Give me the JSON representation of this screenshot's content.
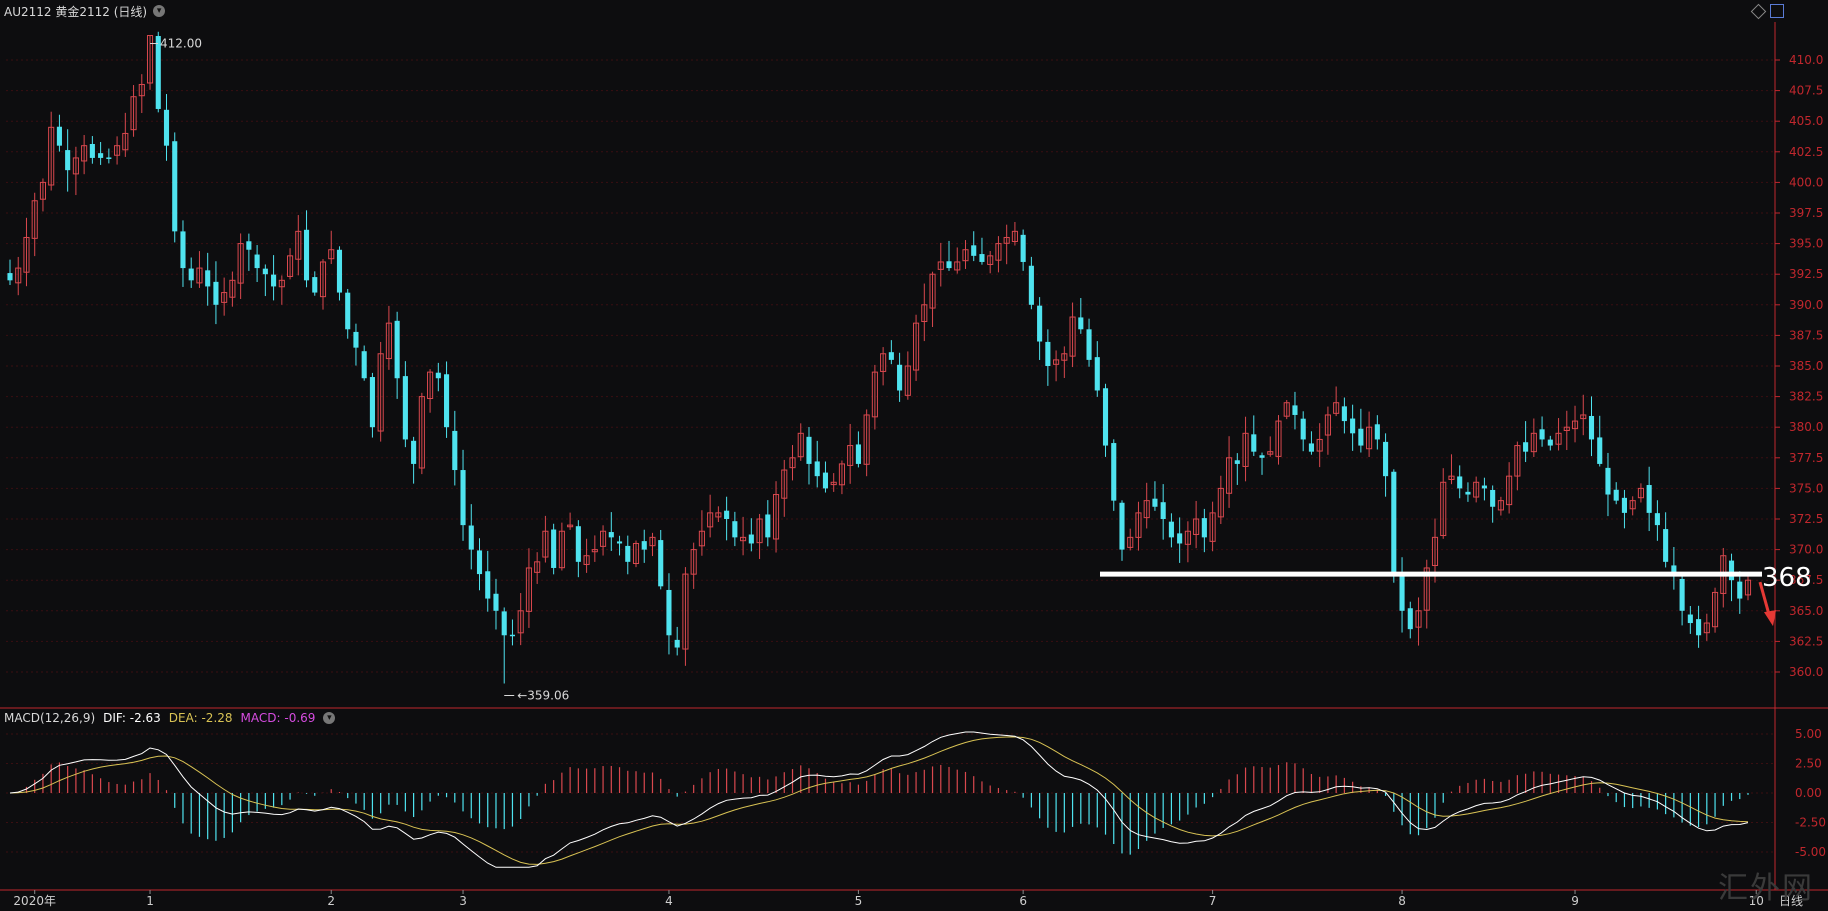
{
  "header": {
    "symbol_title": "AU2112 黄金2112 (日线)"
  },
  "macd_legend": {
    "label": "MACD(12,26,9)",
    "dif": "DIF: -2.63",
    "dea": "DEA: -2.28",
    "macd": "MACD: -0.69"
  },
  "annotations": {
    "high_label": "412.00",
    "low_label": "359.06",
    "level_label": "368",
    "period_label": "日线"
  },
  "watermark": "汇外网",
  "colors": {
    "background": "#0d0d0f",
    "up": "#d9484e",
    "down": "#4fe3ef",
    "axis_red": "#c0272d",
    "dif_line": "#ffffff",
    "dea_line": "#d8c254",
    "level_line": "#ffffff",
    "arrow": "#e53935"
  },
  "chart_data": [
    {
      "type": "candlestick",
      "title": "AU2112 黄金2112 (日线)",
      "ylim": [
        358,
        413
      ],
      "yticks": [
        360.0,
        362.5,
        365.0,
        367.5,
        370.0,
        372.5,
        375.0,
        377.5,
        380.0,
        382.5,
        385.0,
        387.5,
        390.0,
        392.5,
        395.0,
        397.5,
        400.0,
        402.5,
        405.0,
        407.5,
        410.0
      ],
      "xlabels": [
        {
          "i": 3,
          "label": "2020年"
        },
        {
          "i": 17,
          "label": "1"
        },
        {
          "i": 39,
          "label": "2"
        },
        {
          "i": 55,
          "label": "3"
        },
        {
          "i": 80,
          "label": "4"
        },
        {
          "i": 103,
          "label": "5"
        },
        {
          "i": 123,
          "label": "6"
        },
        {
          "i": 146,
          "label": "7"
        },
        {
          "i": 169,
          "label": "8"
        },
        {
          "i": 190,
          "label": "9"
        },
        {
          "i": 212,
          "label": "10"
        }
      ],
      "close": [
        392.0,
        393.0,
        395.5,
        398.5,
        400.0,
        404.5,
        403.0,
        401.0,
        402.0,
        403.0,
        402.0,
        402.0,
        402.0,
        403.0,
        404.0,
        407.0,
        408.0,
        412.0,
        406.0,
        403.0,
        396.0,
        393.0,
        392.0,
        393.0,
        391.5,
        390.0,
        391.0,
        392.0,
        395.0,
        394.5,
        393.0,
        392.5,
        391.5,
        392.0,
        394.0,
        396.0,
        392.0,
        391.0,
        393.5,
        394.5,
        391.0,
        388.0,
        386.5,
        384.0,
        380.0,
        386.0,
        388.5,
        384.0,
        379.0,
        377.0,
        382.5,
        384.5,
        384.0,
        380.0,
        376.5,
        372.0,
        370.0,
        368.0,
        366.0,
        365.0,
        363.0,
        363.0,
        365.0,
        368.5,
        369.0,
        371.5,
        368.5,
        371.5,
        372.0,
        369.0,
        369.5,
        370.0,
        371.5,
        371.0,
        370.5,
        369.0,
        370.5,
        370.0,
        371.0,
        367.0,
        363.0,
        362.0,
        368.0,
        370.0,
        371.5,
        373.0,
        373.0,
        372.5,
        371.0,
        371.0,
        370.5,
        372.5,
        371.0,
        374.5,
        376.5,
        377.5,
        379.5,
        377.0,
        376.0,
        375.0,
        375.5,
        377.0,
        378.5,
        377.0,
        381.0,
        384.5,
        386.0,
        385.5,
        383.0,
        385.0,
        388.5,
        390.0,
        392.5,
        393.5,
        393.0,
        393.5,
        394.5,
        394.0,
        393.5,
        394.0,
        395.0,
        395.5,
        396.0,
        393.5,
        390.0,
        387.0,
        385.0,
        385.5,
        386.0,
        389.0,
        388.0,
        385.5,
        383.0,
        378.5,
        374.0,
        370.0,
        371.0,
        373.0,
        374.0,
        373.5,
        372.5,
        371.0,
        370.5,
        371.5,
        372.5,
        371.0,
        373.0,
        375.0,
        377.5,
        377.0,
        379.5,
        378.0,
        377.5,
        378.0,
        380.5,
        382.0,
        381.0,
        379.0,
        378.0,
        379.0,
        381.0,
        382.0,
        380.5,
        379.5,
        378.5,
        380.0,
        379.0,
        376.0,
        368.0,
        365.0,
        363.5,
        365.0,
        368.5,
        371.0,
        375.5,
        376.0,
        375.0,
        374.5,
        375.5,
        375.0,
        373.5,
        374.0,
        376.0,
        378.5,
        378.0,
        379.5,
        379.0,
        378.5,
        379.5,
        380.0,
        380.5,
        381.0,
        379.0,
        377.0,
        374.5,
        374.0,
        373.0,
        374.0,
        375.0,
        373.0,
        372.0,
        369.0,
        368.0,
        365.0,
        364.0,
        363.0,
        364.0,
        366.5,
        369.5,
        367.5,
        366.0,
        367.5
      ],
      "high_label": 412.0,
      "low_label": 359.06,
      "level_line": 368,
      "period_label": "日线"
    },
    {
      "type": "macd",
      "title": "MACD(12,26,9)",
      "ylim": [
        -6.5,
        7.0
      ],
      "yticks": [
        -5.0,
        -2.5,
        0.0,
        2.5,
        5.0
      ],
      "values": {
        "DIF": -2.63,
        "DEA": -2.28,
        "MACD": -0.69
      }
    }
  ]
}
